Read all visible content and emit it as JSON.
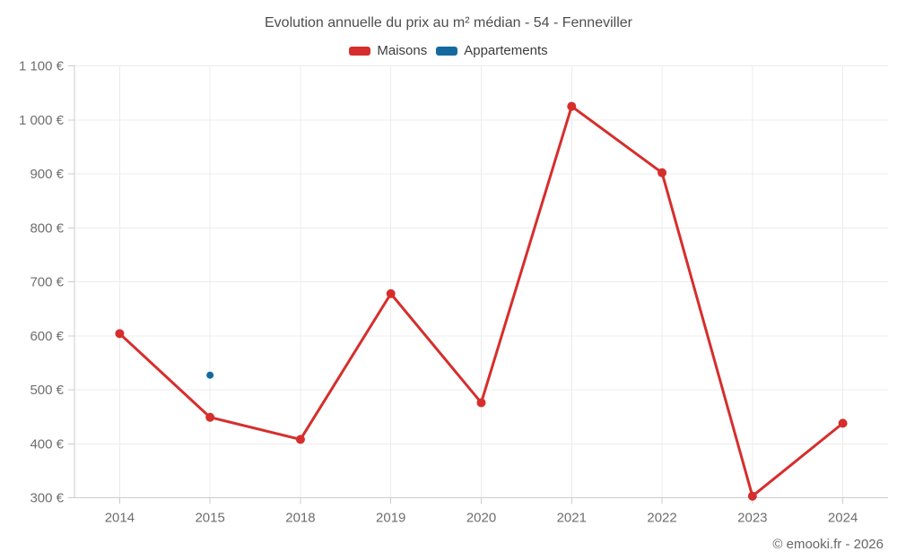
{
  "title": "Evolution annuelle du prix au m² médian - 54 - Fenneviller",
  "legend": {
    "items": [
      {
        "label": "Maisons",
        "color": "#d62e2c"
      },
      {
        "label": "Appartements",
        "color": "#146a9f"
      }
    ]
  },
  "footer": {
    "credit": "© emooki.fr - 2026"
  },
  "chart_data": {
    "type": "line",
    "title": "Evolution annuelle du prix au m² médian - 54 - Fenneviller",
    "categories": [
      "2014",
      "2015",
      "2018",
      "2019",
      "2020",
      "2021",
      "2022",
      "2023",
      "2024"
    ],
    "series": [
      {
        "name": "Maisons",
        "color": "#d62e2c",
        "values": [
          604,
          449,
          408,
          678,
          476,
          1025,
          902,
          303,
          438
        ]
      },
      {
        "name": "Appartements",
        "color": "#146a9f",
        "values": [
          null,
          527,
          null,
          null,
          null,
          null,
          null,
          null,
          null
        ]
      }
    ],
    "xlabel": "",
    "ylabel": "",
    "ylim": [
      300,
      1100
    ],
    "ytick_step": 100,
    "ytick_labels": [
      "300 €",
      "400 €",
      "500 €",
      "600 €",
      "700 €",
      "800 €",
      "900 €",
      "1 000 €",
      "1 100 €"
    ],
    "currency_suffix": "€",
    "grid": true,
    "legend_position": "top",
    "colors": {
      "grid_line": "#ececec",
      "axis_line": "#cccccc",
      "tick_label": "#6e6e6e"
    }
  }
}
